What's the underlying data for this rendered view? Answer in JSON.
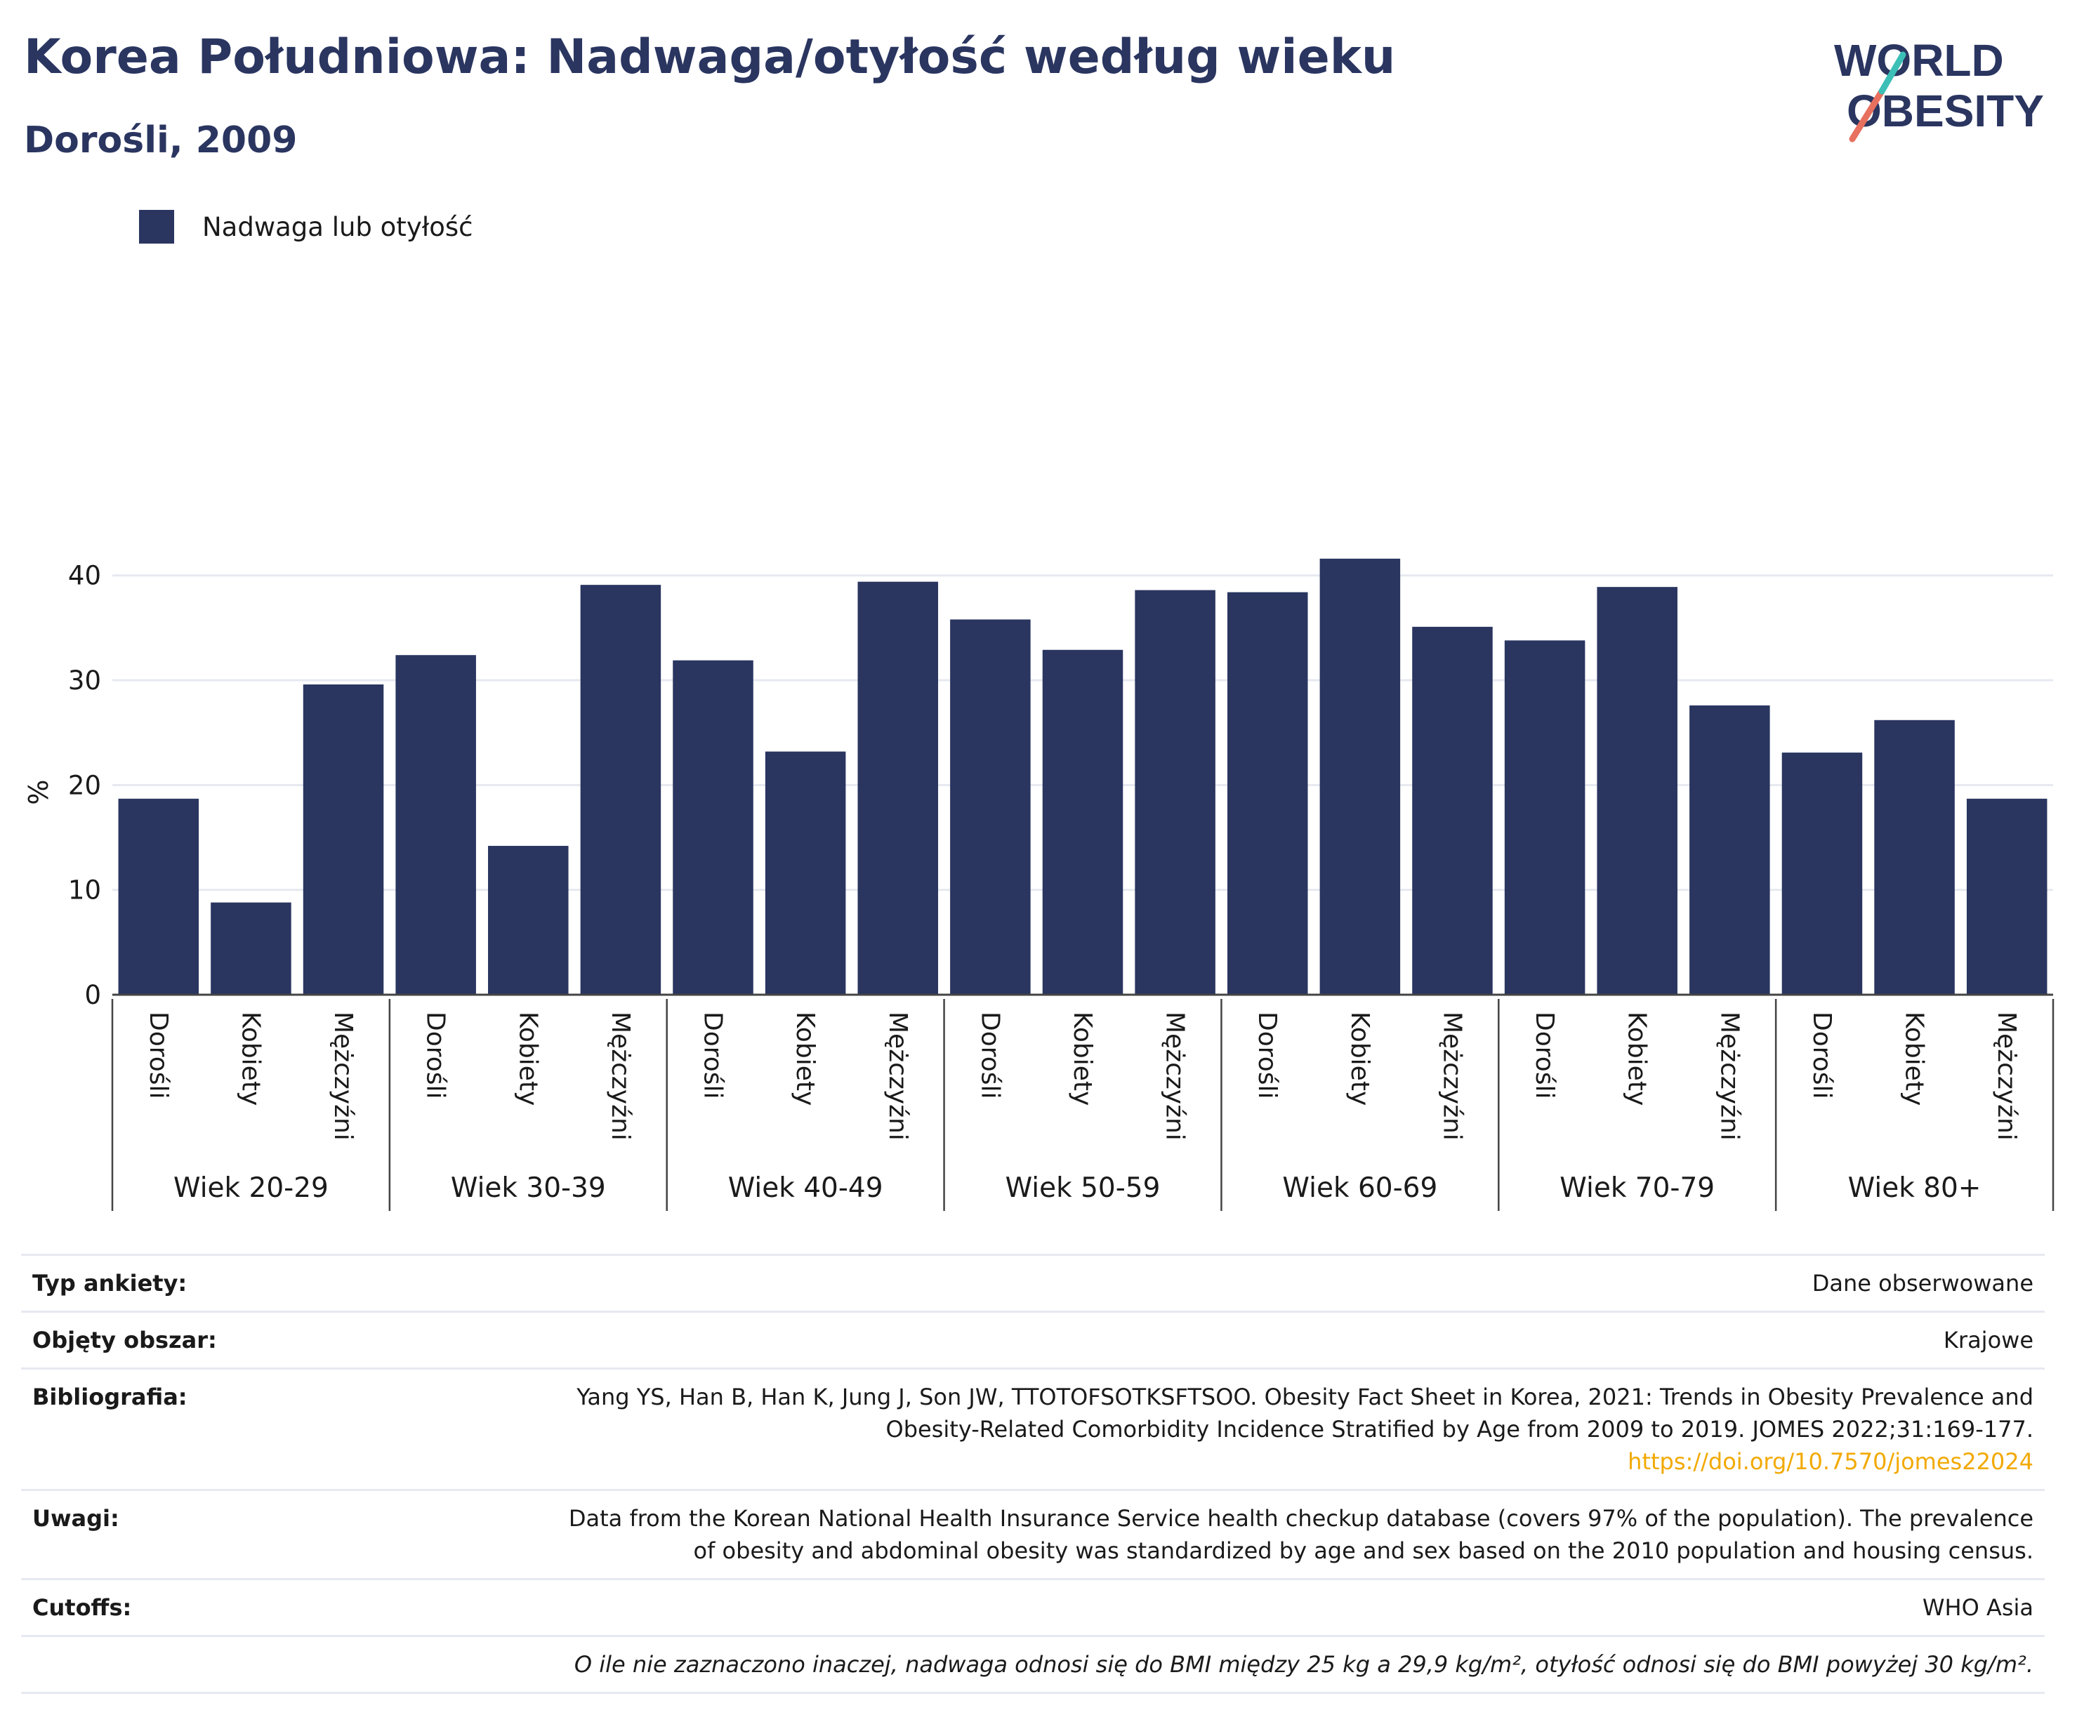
{
  "header": {
    "title": "Korea Południowa: Nadwaga/otyłość według wieku",
    "subtitle": "Dorośli, 2009"
  },
  "logo": {
    "line1": "WORLD",
    "line2": "OBESITY"
  },
  "colors": {
    "bar": "#2a3560",
    "accent_teal": "#3bbfb6",
    "accent_coral": "#e8705f",
    "grid": "#e6e9f0"
  },
  "chart_data": {
    "type": "bar",
    "ylabel": "%",
    "ylim": [
      0,
      44
    ],
    "yticks": [
      0,
      10,
      20,
      30,
      40
    ],
    "grid": true,
    "legend_position": "top-left",
    "series": [
      {
        "name": "Nadwaga lub otyłość",
        "values": [
          18.7,
          8.8,
          29.6,
          32.4,
          14.2,
          39.1,
          31.9,
          23.2,
          39.4,
          35.8,
          32.9,
          38.6,
          38.4,
          41.6,
          35.1,
          33.8,
          38.9,
          27.6,
          23.1,
          26.2,
          18.7
        ]
      }
    ],
    "categories": [
      "Dorośli",
      "Kobiety",
      "Mężczyźni",
      "Dorośli",
      "Kobiety",
      "Mężczyźni",
      "Dorośli",
      "Kobiety",
      "Mężczyźni",
      "Dorośli",
      "Kobiety",
      "Mężczyźni",
      "Dorośli",
      "Kobiety",
      "Mężczyźni",
      "Dorośli",
      "Kobiety",
      "Mężczyźni",
      "Dorośli",
      "Kobiety",
      "Mężczyźni"
    ],
    "groups": [
      "Wiek 20-29",
      "Wiek 30-39",
      "Wiek 40-49",
      "Wiek 50-59",
      "Wiek 60-69",
      "Wiek 70-79",
      "Wiek 80+"
    ]
  },
  "info": {
    "rows": [
      {
        "key": "Typ ankiety:",
        "value": "Dane obserwowane"
      },
      {
        "key": "Objęty obszar:",
        "value": "Krajowe"
      },
      {
        "key": "Bibliografia:",
        "value": "Yang YS, Han B, Han K, Jung J, Son JW, TTOTOFSOTKSFTSOO. Obesity Fact Sheet in Korea, 2021: Trends in Obesity Prevalence and Obesity-Related Comorbidity Incidence Stratified by Age from 2009 to 2019. JOMES 2022;31:169-177.",
        "link": "https://doi.org/10.7570/jomes22024"
      },
      {
        "key": "Uwagi:",
        "value": "Data from the Korean National Health Insurance Service health checkup database (covers 97% of the population). The prevalence of obesity and abdominal obesity was standardized by age and sex based on the 2010 population and housing census."
      },
      {
        "key": "Cutoffs:",
        "value": "WHO Asia"
      }
    ],
    "footnote": "O ile nie zaznaczono inaczej, nadwaga odnosi się do BMI między 25 kg a 29,9 kg/m², otyłość odnosi się do BMI powyżej 30 kg/m²."
  }
}
